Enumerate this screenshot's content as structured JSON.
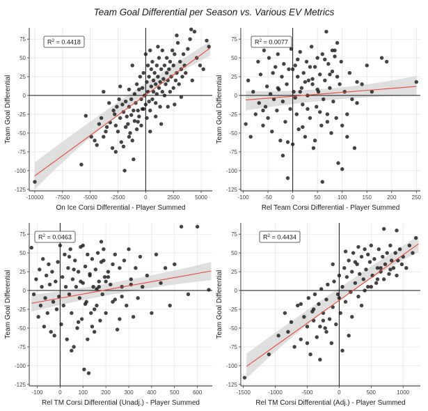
{
  "figure": {
    "title": "Team Goal Differential per Season vs. Various EV Metrics"
  },
  "style": {
    "point_color": "#1a1a1a",
    "fit_color": "#e8483a",
    "band_color": "#d4d4d4",
    "grid_color": "#e3e3e3",
    "zero_line_color": "#111111"
  },
  "chart_data": [
    {
      "type": "scatter",
      "xlabel": "On Ice Corsi Differential - Player Summed",
      "ylabel": "Team Goal Differential",
      "r2_label": "R",
      "r2_exponent": "2",
      "r2_value": " = 0.4418",
      "xlim": [
        -10500,
        6000
      ],
      "ylim": [
        -127,
        90
      ],
      "xticks": [
        -10000,
        -7500,
        -5000,
        -2500,
        0,
        2500,
        5000
      ],
      "yticks": [
        -125,
        -100,
        -75,
        -50,
        -25,
        0,
        25,
        50,
        75
      ],
      "grid": true,
      "fit": {
        "x0": -10000,
        "y0": -107,
        "x1": 5800,
        "y1": 63
      },
      "band": {
        "lower": [
          -125,
          -7,
          53
        ],
        "upper": [
          -89,
          -1,
          72
        ]
      },
      "x_points": [
        -10000,
        -5800,
        -5400,
        -4900,
        -4600,
        -4400,
        -4200,
        -4000,
        -3800,
        -3600,
        -3500,
        -3300,
        -3200,
        -3000,
        -2900,
        -2800,
        -2700,
        -2600,
        -2500,
        -2400,
        -2300,
        -2200,
        -2100,
        -2000,
        -1900,
        -1800,
        -1800,
        -1700,
        -1600,
        -1500,
        -1500,
        -1400,
        -1300,
        -1300,
        -1200,
        -1100,
        -1000,
        -1000,
        -900,
        -800,
        -800,
        -700,
        -600,
        -600,
        -500,
        -400,
        -400,
        -300,
        -200,
        -200,
        -100,
        0,
        0,
        100,
        100,
        200,
        200,
        300,
        300,
        400,
        400,
        500,
        500,
        600,
        600,
        700,
        700,
        800,
        900,
        900,
        1000,
        1000,
        1100,
        1200,
        1200,
        1300,
        1300,
        1400,
        1500,
        1500,
        1600,
        1700,
        1700,
        1800,
        1900,
        1900,
        2000,
        2100,
        2200,
        2200,
        2300,
        2400,
        2500,
        2500,
        2600,
        2700,
        2800,
        2900,
        3000,
        3100,
        3200,
        3300,
        3400,
        3500,
        3600,
        3800,
        4000,
        4200,
        4400,
        4600,
        4900,
        5200,
        5500,
        5700,
        -2700,
        -2000,
        -1500,
        -1100,
        -700,
        -300,
        400,
        900,
        1400,
        2000,
        2600,
        3200,
        -3800,
        -2300,
        -1200,
        1100,
        2800,
        4100
      ],
      "y_points": [
        -115,
        -92,
        -27,
        -55,
        -60,
        -66,
        -38,
        -30,
        -55,
        -48,
        -42,
        -10,
        -36,
        -70,
        -20,
        -25,
        -75,
        -15,
        -48,
        -5,
        -30,
        -62,
        -12,
        -22,
        -100,
        -8,
        -42,
        -28,
        -38,
        -15,
        8,
        -50,
        -26,
        -5,
        -60,
        -20,
        2,
        -34,
        -10,
        15,
        -45,
        -20,
        8,
        -28,
        25,
        -5,
        -40,
        10,
        -18,
        30,
        0,
        55,
        -12,
        18,
        -30,
        40,
        5,
        -8,
        25,
        60,
        -20,
        12,
        35,
        -5,
        45,
        20,
        5,
        30,
        -10,
        15,
        40,
        2,
        25,
        10,
        50,
        -15,
        18,
        35,
        5,
        60,
        22,
        0,
        40,
        15,
        30,
        50,
        20,
        35,
        5,
        45,
        25,
        60,
        10,
        40,
        55,
        20,
        30,
        70,
        15,
        45,
        35,
        25,
        55,
        40,
        30,
        62,
        75,
        20,
        85,
        50,
        40,
        35,
        73,
        65,
        -40,
        -68,
        -55,
        -85,
        -35,
        -18,
        -48,
        -28,
        -38,
        -15,
        -12,
        -2,
        5,
        12,
        40,
        65,
        80,
        88
      ]
    },
    {
      "type": "scatter",
      "xlabel": "Rel Team Corsi Differential - Player Summed",
      "ylabel": "Team Goal Differential",
      "r2_label": "R",
      "r2_exponent": "2",
      "r2_value": " = 0.0077",
      "xlim": [
        -105,
        258
      ],
      "ylim": [
        -127,
        90
      ],
      "xticks": [
        -100,
        -50,
        0,
        50,
        100,
        150,
        200,
        250
      ],
      "yticks": [
        -125,
        -100,
        -75,
        -50,
        -25,
        0,
        25,
        50,
        75
      ],
      "grid": true,
      "fit": {
        "x0": -95,
        "y0": -6,
        "x1": 250,
        "y1": 12
      },
      "band": {
        "lower": [
          -20,
          -2,
          0
        ],
        "upper": [
          6,
          3,
          26
        ]
      },
      "x_points": [
        -95,
        -90,
        -85,
        -80,
        -75,
        -70,
        -68,
        -65,
        -60,
        -58,
        -55,
        -52,
        -50,
        -48,
        -45,
        -42,
        -40,
        -38,
        -35,
        -32,
        -30,
        -28,
        -25,
        -22,
        -20,
        -18,
        -15,
        -12,
        -10,
        -8,
        -5,
        -3,
        0,
        2,
        5,
        8,
        10,
        12,
        15,
        18,
        20,
        22,
        25,
        28,
        30,
        32,
        35,
        38,
        40,
        42,
        45,
        48,
        50,
        52,
        55,
        58,
        60,
        62,
        65,
        68,
        70,
        72,
        75,
        78,
        80,
        82,
        85,
        88,
        90,
        92,
        95,
        98,
        100,
        105,
        110,
        115,
        120,
        125,
        130,
        140,
        150,
        160,
        180,
        190,
        250,
        -60,
        -40,
        -20,
        0,
        20,
        40,
        60,
        80,
        100,
        30,
        10,
        -10,
        50,
        70,
        90,
        25,
        45,
        65,
        15,
        35,
        55,
        75,
        -30,
        5,
        85,
        110,
        130
      ],
      "y_points": [
        -38,
        20,
        -55,
        5,
        -25,
        45,
        -10,
        28,
        -40,
        60,
        -15,
        12,
        -30,
        50,
        2,
        -48,
        30,
        -5,
        38,
        -20,
        55,
        8,
        -60,
        25,
        -8,
        42,
        -35,
        15,
        -110,
        35,
        -18,
        62,
        -65,
        5,
        40,
        -25,
        25,
        -45,
        58,
        10,
        -12,
        30,
        -55,
        45,
        0,
        20,
        -30,
        65,
        15,
        -70,
        38,
        -15,
        50,
        5,
        28,
        -40,
        55,
        -5,
        20,
        85,
        -25,
        42,
        10,
        -50,
        32,
        -8,
        60,
        -30,
        25,
        -90,
        15,
        45,
        -40,
        5,
        -55,
        30,
        -5,
        -70,
        18,
        15,
        40,
        5,
        50,
        45,
        18,
        -20,
        75,
        -80,
        35,
        -42,
        22,
        -115,
        60,
        -98,
        -18,
        48,
        -62,
        8,
        -35,
        70,
        18,
        -60,
        48,
        5,
        38,
        -22,
        28,
        10,
        -3,
        52,
        -25,
        -10
      ]
    },
    {
      "type": "scatter",
      "xlabel": "Rel TM Corsi Differential (Unadj.) - Player Summed",
      "ylabel": "Team Goal Differential",
      "r2_label": "R",
      "r2_exponent": "2",
      "r2_value": " = 0.0463",
      "xlim": [
        -135,
        665
      ],
      "ylim": [
        -127,
        90
      ],
      "xticks": [
        -100,
        0,
        100,
        200,
        300,
        400,
        500,
        600
      ],
      "yticks": [
        -125,
        -100,
        -75,
        -50,
        -25,
        0,
        25,
        50,
        75
      ],
      "grid": true,
      "fit": {
        "x0": -125,
        "y0": -17,
        "x1": 660,
        "y1": 26
      },
      "band": {
        "lower": [
          -28,
          1,
          14
        ],
        "upper": [
          -6,
          9,
          38
        ]
      },
      "x_points": [
        -125,
        -115,
        -105,
        -95,
        -90,
        -85,
        -80,
        -75,
        -70,
        -65,
        -60,
        -55,
        -50,
        -45,
        -40,
        -35,
        -30,
        -25,
        -20,
        -15,
        -10,
        -5,
        0,
        5,
        10,
        15,
        20,
        25,
        30,
        35,
        40,
        45,
        50,
        55,
        60,
        65,
        70,
        75,
        80,
        85,
        90,
        95,
        100,
        105,
        110,
        115,
        120,
        125,
        130,
        135,
        140,
        145,
        150,
        155,
        160,
        165,
        170,
        175,
        180,
        185,
        190,
        195,
        200,
        210,
        220,
        230,
        240,
        250,
        260,
        270,
        280,
        290,
        300,
        310,
        320,
        330,
        340,
        350,
        360,
        380,
        400,
        420,
        440,
        460,
        480,
        500,
        530,
        560,
        600,
        650,
        50,
        120,
        180,
        240,
        100,
        150,
        200,
        80,
        130,
        170,
        230,
        270,
        60,
        110,
        160,
        210,
        260,
        310,
        140,
        190,
        90,
        40
      ],
      "y_points": [
        57,
        -5,
        15,
        -35,
        28,
        -20,
        5,
        42,
        -48,
        -10,
        20,
        -30,
        35,
        8,
        -55,
        25,
        -15,
        -60,
        12,
        -25,
        38,
        -8,
        60,
        -45,
        18,
        -20,
        48,
        5,
        -65,
        30,
        -5,
        55,
        -30,
        15,
        -75,
        40,
        5,
        -50,
        25,
        -10,
        58,
        -38,
        10,
        -105,
        32,
        -15,
        48,
        -110,
        20,
        -30,
        42,
        5,
        -55,
        28,
        -20,
        50,
        12,
        -40,
        38,
        -5,
        55,
        18,
        -30,
        25,
        8,
        -15,
        48,
        -52,
        30,
        5,
        40,
        -20,
        55,
        15,
        -35,
        30,
        -10,
        45,
        5,
        20,
        -30,
        48,
        10,
        30,
        -20,
        35,
        85,
        -5,
        85,
        1,
        -80,
        -65,
        65,
        -12,
        60,
        -25,
        12,
        -42,
        22,
        5,
        35,
        -8,
        28,
        -18,
        2,
        18,
        -38,
        8,
        -48,
        40,
        12,
        45
      ]
    },
    {
      "type": "scatter",
      "xlabel": "Rel TM Corsi Differential (Adj.) - Player Summed",
      "ylabel": "Team Goal Differential",
      "r2_label": "R",
      "r2_exponent": "2",
      "r2_value": " = 0.4434",
      "xlim": [
        -1540,
        1270
      ],
      "ylim": [
        -127,
        90
      ],
      "xticks": [
        -1500,
        -1000,
        -500,
        0,
        500,
        1000
      ],
      "yticks": [
        -125,
        -100,
        -75,
        -50,
        -25,
        0,
        25,
        50,
        75
      ],
      "grid": true,
      "fit": {
        "x0": -1450,
        "y0": -101,
        "x1": 1240,
        "y1": 62
      },
      "band": {
        "lower": [
          -117,
          -6,
          51
        ],
        "upper": [
          -84,
          0,
          73
        ]
      },
      "x_points": [
        -1480,
        -1100,
        -950,
        -850,
        -800,
        -750,
        -700,
        -650,
        -600,
        -550,
        -500,
        -480,
        -450,
        -420,
        -400,
        -380,
        -350,
        -320,
        -300,
        -280,
        -250,
        -220,
        -200,
        -180,
        -150,
        -120,
        -100,
        -80,
        -50,
        -20,
        0,
        20,
        50,
        80,
        100,
        120,
        150,
        180,
        200,
        220,
        250,
        280,
        300,
        320,
        350,
        380,
        400,
        420,
        450,
        480,
        500,
        520,
        550,
        580,
        600,
        620,
        650,
        680,
        700,
        720,
        750,
        780,
        800,
        820,
        850,
        880,
        900,
        920,
        950,
        980,
        1000,
        1050,
        1100,
        1150,
        1200,
        -600,
        -400,
        -200,
        0,
        200,
        400,
        600,
        800,
        -300,
        -100,
        100,
        300,
        500,
        700,
        900,
        -500,
        -250,
        50,
        350,
        650,
        250,
        150,
        450
      ],
      "y_points": [
        -116,
        -85,
        -60,
        -30,
        -55,
        -42,
        -75,
        -20,
        -65,
        -35,
        -48,
        -10,
        -85,
        -28,
        -40,
        -5,
        -62,
        -18,
        -92,
        2,
        -30,
        -50,
        -12,
        8,
        -38,
        -70,
        -22,
        12,
        -45,
        -5,
        20,
        -30,
        5,
        30,
        -15,
        18,
        40,
        -2,
        25,
        50,
        10,
        35,
        -8,
        22,
        45,
        15,
        55,
        28,
        5,
        38,
        60,
        20,
        42,
        10,
        30,
        55,
        25,
        45,
        15,
        35,
        50,
        22,
        60,
        40,
        30,
        50,
        20,
        40,
        55,
        35,
        45,
        30,
        60,
        50,
        70,
        -18,
        -25,
        -55,
        -10,
        -35,
        0,
        15,
        28,
        -48,
        35,
        52,
        58,
        5,
        82,
        80,
        -70,
        -40,
        -80,
        -20,
        30,
        38,
        -60,
        48
      ]
    }
  ]
}
